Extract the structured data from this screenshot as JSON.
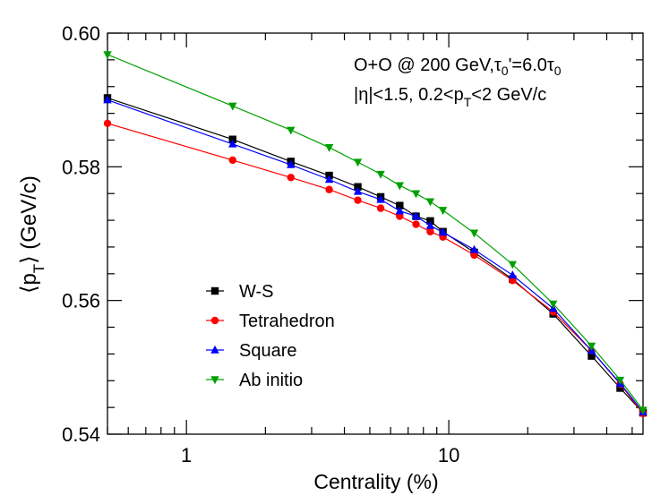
{
  "chart_data": {
    "type": "line",
    "xscale": "log",
    "xlim": [
      0.5,
      55
    ],
    "ylim": [
      0.54,
      0.6
    ],
    "xlabel": "Centrality (%)",
    "ylabel_parts": {
      "open": "⟨p",
      "sub": "T",
      "close": "⟩ (GeV/c)"
    },
    "xticks": [
      {
        "value": 1,
        "label": "1"
      },
      {
        "value": 10,
        "label": "10"
      }
    ],
    "yticks": [
      {
        "value": 0.54,
        "label": "0.54"
      },
      {
        "value": 0.56,
        "label": "0.56"
      },
      {
        "value": 0.58,
        "label": "0.58"
      },
      {
        "value": 0.6,
        "label": "0.60"
      }
    ],
    "annotations": {
      "line1": {
        "pre": "O+O @ 200 GeV,",
        "tau": "τ",
        "sub0": "0",
        "mid": "'=6.0",
        "tau2": "τ",
        "sub1": "0"
      },
      "line2": {
        "pre": "|η|<1.5, 0.2<p",
        "sub": "T",
        "post": "<2 GeV/c"
      }
    },
    "series": [
      {
        "name": "W-S",
        "color": "#000000",
        "marker": "square",
        "x": [
          0.5,
          1.5,
          2.5,
          3.5,
          4.5,
          5.5,
          6.5,
          7.5,
          8.5,
          9.5,
          12.5,
          17.5,
          25,
          35,
          45,
          55
        ],
        "y": [
          0.5903,
          0.5841,
          0.5808,
          0.5787,
          0.577,
          0.5755,
          0.5742,
          0.5726,
          0.5719,
          0.5703,
          0.5672,
          0.5632,
          0.558,
          0.5517,
          0.5469,
          0.5432
        ]
      },
      {
        "name": "Tetrahedron",
        "color": "#ff0000",
        "marker": "circle",
        "x": [
          0.5,
          1.5,
          2.5,
          3.5,
          4.5,
          5.5,
          6.5,
          7.5,
          8.5,
          9.5,
          12.5,
          17.5,
          25,
          35,
          45,
          55
        ],
        "y": [
          0.5865,
          0.581,
          0.5784,
          0.5766,
          0.575,
          0.5738,
          0.5726,
          0.5714,
          0.5703,
          0.5695,
          0.5668,
          0.563,
          0.5583,
          0.5525,
          0.5475,
          0.5431
        ]
      },
      {
        "name": "Square",
        "color": "#0000ff",
        "marker": "triangle-up",
        "x": [
          0.5,
          1.5,
          2.5,
          3.5,
          4.5,
          5.5,
          6.5,
          7.5,
          8.5,
          9.5,
          12.5,
          17.5,
          25,
          35,
          45,
          55
        ],
        "y": [
          0.59,
          0.5834,
          0.5803,
          0.5781,
          0.5763,
          0.5751,
          0.5734,
          0.5726,
          0.5712,
          0.5702,
          0.5676,
          0.5638,
          0.5588,
          0.5525,
          0.5476,
          0.5433
        ]
      },
      {
        "name": "Ab initio",
        "color": "#00a000",
        "marker": "triangle-down",
        "x": [
          0.5,
          1.5,
          2.5,
          3.5,
          4.5,
          5.5,
          6.5,
          7.5,
          8.5,
          9.5,
          12.5,
          17.5,
          25,
          35,
          45,
          55
        ],
        "y": [
          0.5968,
          0.5891,
          0.5855,
          0.5829,
          0.5807,
          0.5789,
          0.5772,
          0.576,
          0.5748,
          0.5735,
          0.5701,
          0.5654,
          0.5595,
          0.5532,
          0.5481,
          0.5436
        ]
      }
    ]
  }
}
